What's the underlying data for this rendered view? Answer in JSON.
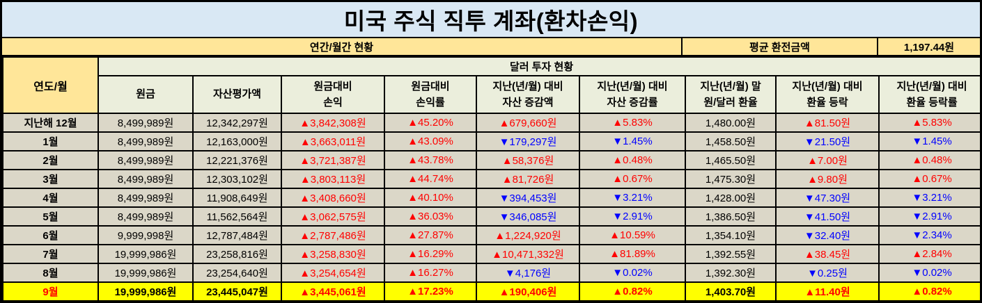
{
  "title": "미국 주식 직투 계좌(환차손익)",
  "top_band": {
    "period_label": "연간/월간 현황",
    "avg_exchange_label": "평균 환전금액",
    "avg_exchange_value": "1,197.44원"
  },
  "table": {
    "corner_header": "연도/월",
    "group_header": "달러 투자 현황",
    "column_headers": [
      "원금",
      "자산평가액",
      "원금대비\n손익",
      "원금대비\n손익률",
      "지난(년/월) 대비\n자산 증감액",
      "지난(년/월) 대비\n자산 증감률",
      "지난(년/월) 말\n원/달러 환율",
      "지난(년/월) 대비\n환율 등락",
      "지난(년/월) 대비\n환율 등락률"
    ],
    "rows": [
      {
        "month": "지난해 12월",
        "highlight": false,
        "cells": [
          {
            "text": "8,499,989원",
            "trend": "flat"
          },
          {
            "text": "12,342,297원",
            "trend": "flat"
          },
          {
            "text": "▲3,842,308원",
            "trend": "up"
          },
          {
            "text": "▲45.20%",
            "trend": "up"
          },
          {
            "text": "▲679,660원",
            "trend": "up"
          },
          {
            "text": "▲5.83%",
            "trend": "up"
          },
          {
            "text": "1,480.00원",
            "trend": "flat"
          },
          {
            "text": "▲81.50원",
            "trend": "up"
          },
          {
            "text": "▲5.83%",
            "trend": "up"
          }
        ]
      },
      {
        "month": "1월",
        "highlight": false,
        "cells": [
          {
            "text": "8,499,989원",
            "trend": "flat"
          },
          {
            "text": "12,163,000원",
            "trend": "flat"
          },
          {
            "text": "▲3,663,011원",
            "trend": "up"
          },
          {
            "text": "▲43.09%",
            "trend": "up"
          },
          {
            "text": "▼179,297원",
            "trend": "down"
          },
          {
            "text": "▼1.45%",
            "trend": "down"
          },
          {
            "text": "1,458.50원",
            "trend": "flat"
          },
          {
            "text": "▼21.50원",
            "trend": "down"
          },
          {
            "text": "▼1.45%",
            "trend": "down"
          }
        ]
      },
      {
        "month": "2월",
        "highlight": false,
        "cells": [
          {
            "text": "8,499,989원",
            "trend": "flat"
          },
          {
            "text": "12,221,376원",
            "trend": "flat"
          },
          {
            "text": "▲3,721,387원",
            "trend": "up"
          },
          {
            "text": "▲43.78%",
            "trend": "up"
          },
          {
            "text": "▲58,376원",
            "trend": "up"
          },
          {
            "text": "▲0.48%",
            "trend": "up"
          },
          {
            "text": "1,465.50원",
            "trend": "flat"
          },
          {
            "text": "▲7.00원",
            "trend": "up"
          },
          {
            "text": "▲0.48%",
            "trend": "up"
          }
        ]
      },
      {
        "month": "3월",
        "highlight": false,
        "cells": [
          {
            "text": "8,499,989원",
            "trend": "flat"
          },
          {
            "text": "12,303,102원",
            "trend": "flat"
          },
          {
            "text": "▲3,803,113원",
            "trend": "up"
          },
          {
            "text": "▲44.74%",
            "trend": "up"
          },
          {
            "text": "▲81,726원",
            "trend": "up"
          },
          {
            "text": "▲0.67%",
            "trend": "up"
          },
          {
            "text": "1,475.30원",
            "trend": "flat"
          },
          {
            "text": "▲9.80원",
            "trend": "up"
          },
          {
            "text": "▲0.67%",
            "trend": "up"
          }
        ]
      },
      {
        "month": "4월",
        "highlight": false,
        "cells": [
          {
            "text": "8,499,989원",
            "trend": "flat"
          },
          {
            "text": "11,908,649원",
            "trend": "flat"
          },
          {
            "text": "▲3,408,660원",
            "trend": "up"
          },
          {
            "text": "▲40.10%",
            "trend": "up"
          },
          {
            "text": "▼394,453원",
            "trend": "down"
          },
          {
            "text": "▼3.21%",
            "trend": "down"
          },
          {
            "text": "1,428.00원",
            "trend": "flat"
          },
          {
            "text": "▼47.30원",
            "trend": "down"
          },
          {
            "text": "▼3.21%",
            "trend": "down"
          }
        ]
      },
      {
        "month": "5월",
        "highlight": false,
        "cells": [
          {
            "text": "8,499,989원",
            "trend": "flat"
          },
          {
            "text": "11,562,564원",
            "trend": "flat"
          },
          {
            "text": "▲3,062,575원",
            "trend": "up"
          },
          {
            "text": "▲36.03%",
            "trend": "up"
          },
          {
            "text": "▼346,085원",
            "trend": "down"
          },
          {
            "text": "▼2.91%",
            "trend": "down"
          },
          {
            "text": "1,386.50원",
            "trend": "flat"
          },
          {
            "text": "▼41.50원",
            "trend": "down"
          },
          {
            "text": "▼2.91%",
            "trend": "down"
          }
        ]
      },
      {
        "month": "6월",
        "highlight": false,
        "cells": [
          {
            "text": "9,999,998원",
            "trend": "flat"
          },
          {
            "text": "12,787,484원",
            "trend": "flat"
          },
          {
            "text": "▲2,787,486원",
            "trend": "up"
          },
          {
            "text": "▲27.87%",
            "trend": "up"
          },
          {
            "text": "▲1,224,920원",
            "trend": "up"
          },
          {
            "text": "▲10.59%",
            "trend": "up"
          },
          {
            "text": "1,354.10원",
            "trend": "flat"
          },
          {
            "text": "▼32.40원",
            "trend": "down"
          },
          {
            "text": "▼2.34%",
            "trend": "down"
          }
        ]
      },
      {
        "month": "7월",
        "highlight": false,
        "cells": [
          {
            "text": "19,999,986원",
            "trend": "flat"
          },
          {
            "text": "23,258,816원",
            "trend": "flat"
          },
          {
            "text": "▲3,258,830원",
            "trend": "up"
          },
          {
            "text": "▲16.29%",
            "trend": "up"
          },
          {
            "text": "▲10,471,332원",
            "trend": "up"
          },
          {
            "text": "▲81.89%",
            "trend": "up"
          },
          {
            "text": "1,392.55원",
            "trend": "flat"
          },
          {
            "text": "▲38.45원",
            "trend": "up"
          },
          {
            "text": "▲2.84%",
            "trend": "up"
          }
        ]
      },
      {
        "month": "8월",
        "highlight": false,
        "cells": [
          {
            "text": "19,999,986원",
            "trend": "flat"
          },
          {
            "text": "23,254,640원",
            "trend": "flat"
          },
          {
            "text": "▲3,254,654원",
            "trend": "up"
          },
          {
            "text": "▲16.27%",
            "trend": "up"
          },
          {
            "text": "▼4,176원",
            "trend": "down"
          },
          {
            "text": "▼0.02%",
            "trend": "down"
          },
          {
            "text": "1,392.30원",
            "trend": "flat"
          },
          {
            "text": "▼0.25원",
            "trend": "down"
          },
          {
            "text": "▼0.02%",
            "trend": "down"
          }
        ]
      },
      {
        "month": "9월",
        "highlight": true,
        "cells": [
          {
            "text": "19,999,986원",
            "trend": "flat"
          },
          {
            "text": "23,445,047원",
            "trend": "flat"
          },
          {
            "text": "▲3,445,061원",
            "trend": "up"
          },
          {
            "text": "▲17.23%",
            "trend": "up"
          },
          {
            "text": "▲190,406원",
            "trend": "up"
          },
          {
            "text": "▲0.82%",
            "trend": "up"
          },
          {
            "text": "1,403.70원",
            "trend": "flat"
          },
          {
            "text": "▲11.40원",
            "trend": "up"
          },
          {
            "text": "▲0.82%",
            "trend": "up"
          }
        ]
      }
    ]
  },
  "colors": {
    "up": "#FF0000",
    "down": "#0000FF",
    "title_bg": "#D9E8F4",
    "band_bg": "#FFE699",
    "header_bg": "#EBEEDC",
    "cell_bg": "#DBD7C8",
    "highlight_bg": "#FFFF00"
  }
}
